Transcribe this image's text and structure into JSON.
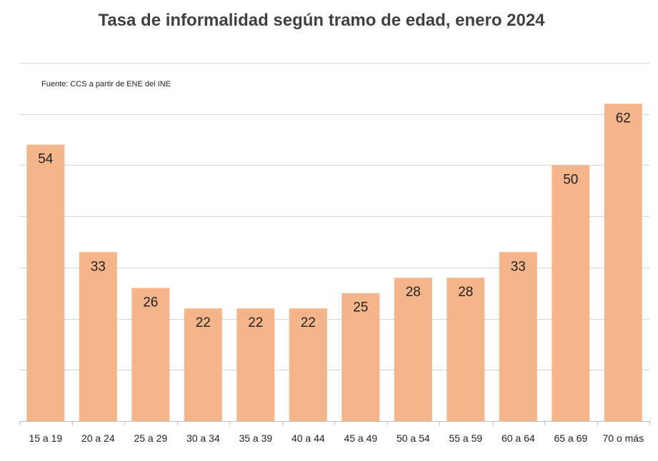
{
  "chart_data": {
    "type": "bar",
    "title": "Tasa de informalidad según tramo de edad, enero 2024",
    "source": "Fuente: CCS a partir de ENE del INE",
    "categories": [
      "15 a 19",
      "20 a 24",
      "25 a 29",
      "30 a 34",
      "35 a 39",
      "40 a 44",
      "45 a 49",
      "50 a 54",
      "55 a 59",
      "60 a 64",
      "65 a 69",
      "70  o más"
    ],
    "values": [
      54,
      33,
      26,
      22,
      22,
      22,
      25,
      28,
      28,
      33,
      50,
      62
    ],
    "data_labels": [
      "54",
      "33",
      "26",
      "22",
      "22",
      "22",
      "25",
      "28",
      "28",
      "33",
      "50",
      "62"
    ],
    "xlabel": "",
    "ylabel": "",
    "ylim": [
      0,
      70
    ],
    "grid": true,
    "legend": "none",
    "colors": {
      "bar": "#f4b58a",
      "grid": "#d6d6d6",
      "text": "#222222",
      "title": "#404040"
    }
  }
}
